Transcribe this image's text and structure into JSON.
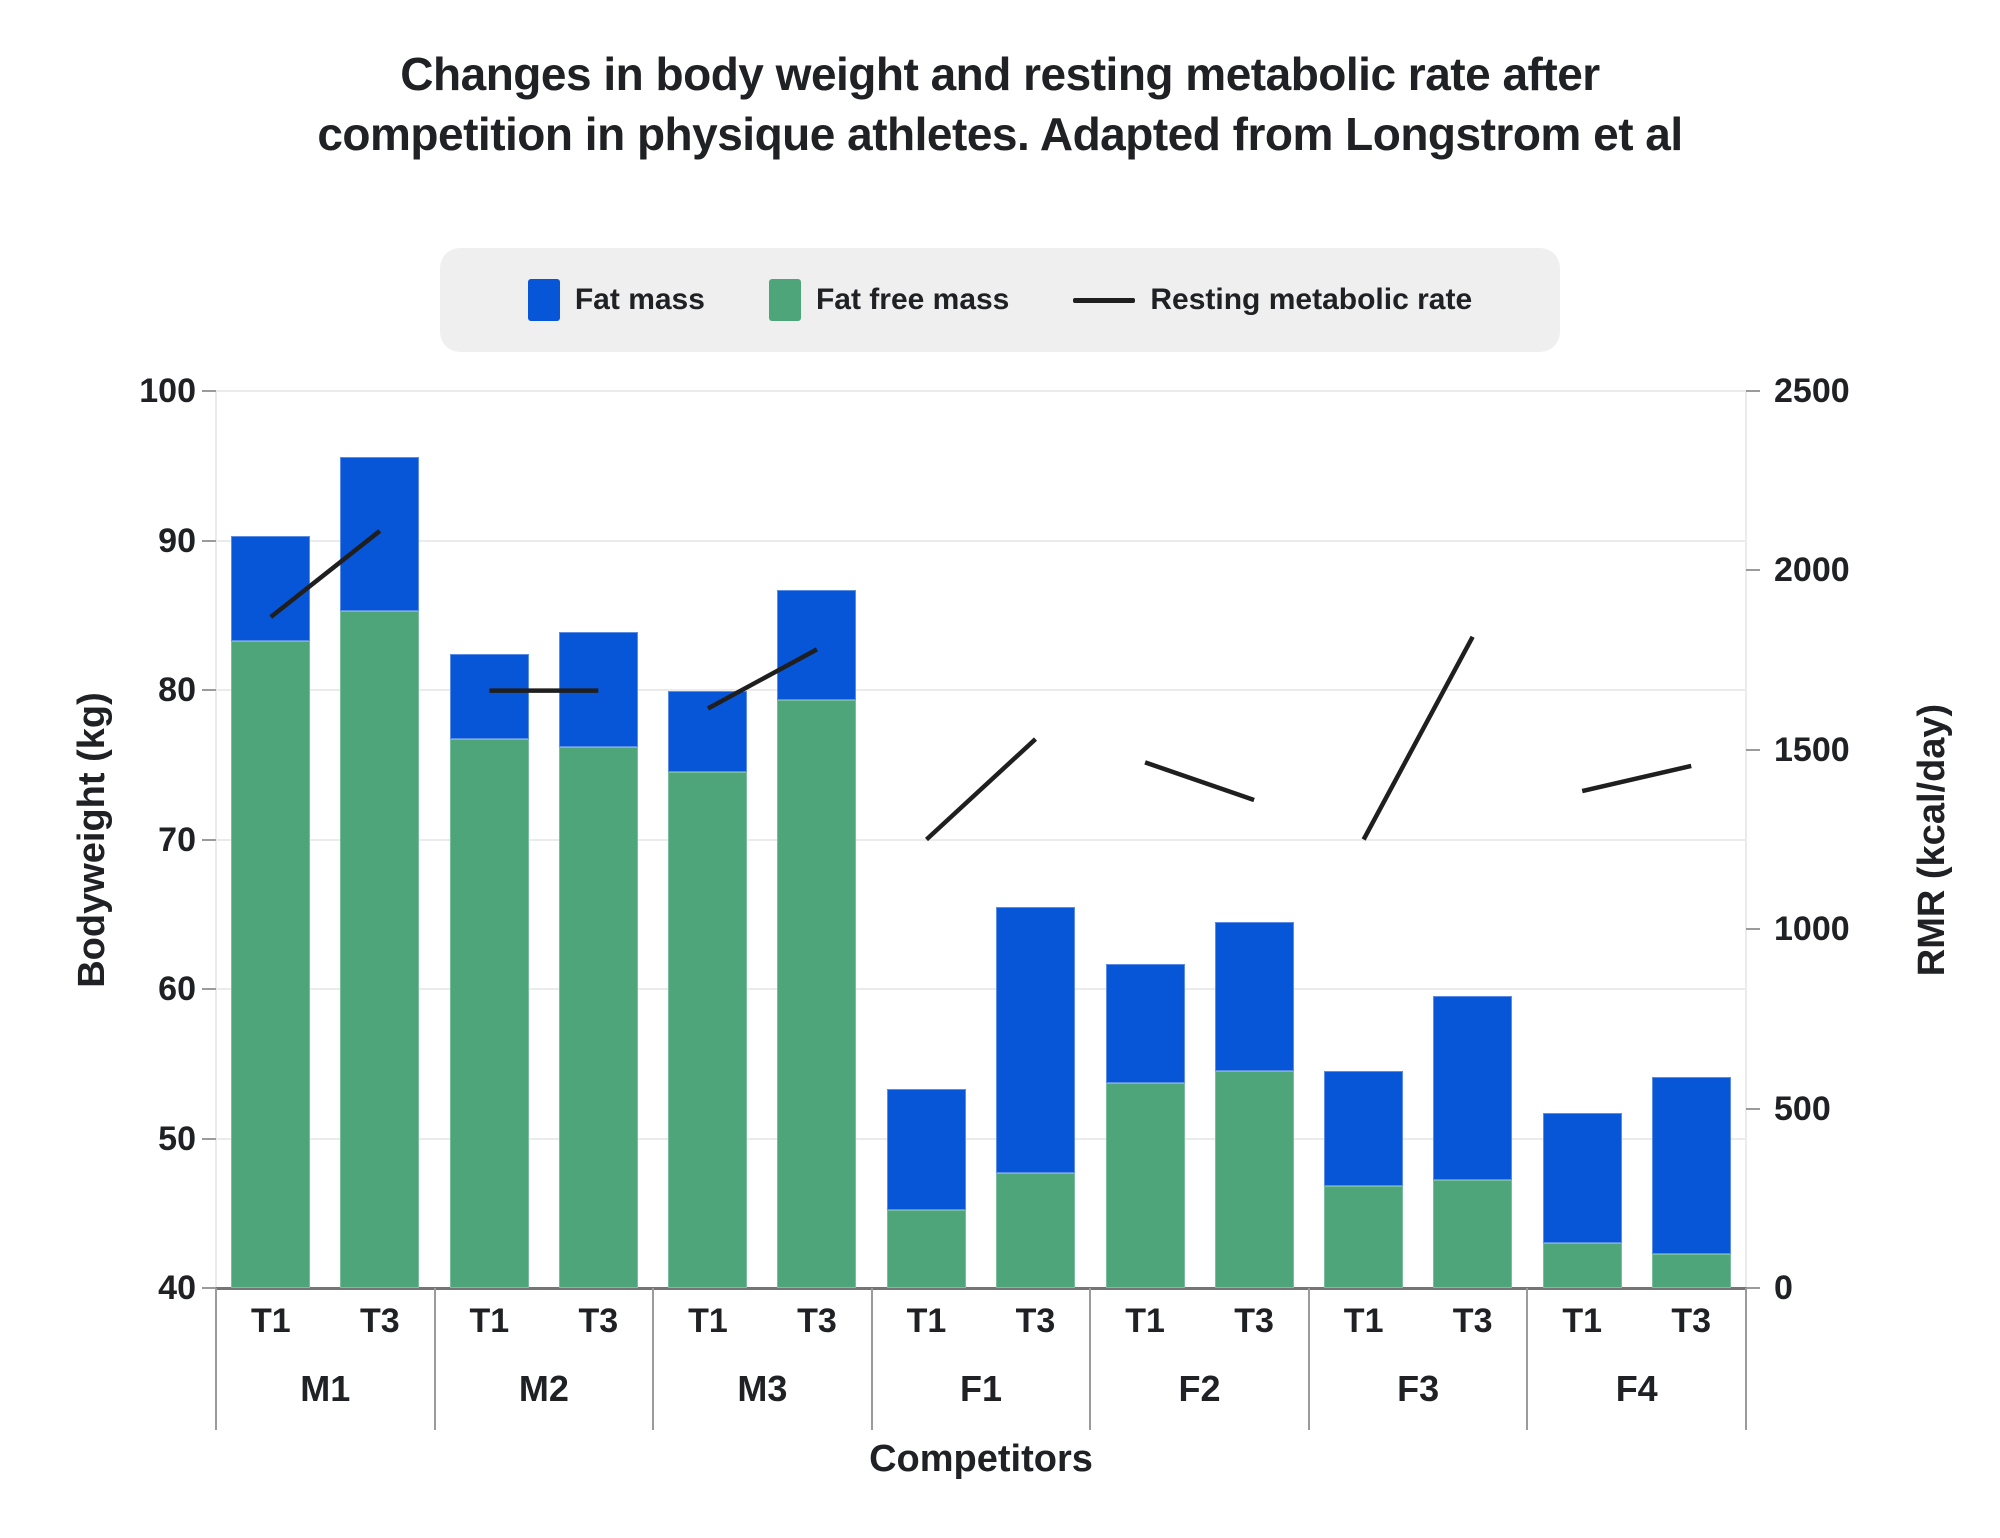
{
  "title": {
    "line1": "Changes in body weight and resting metabolic rate after",
    "line2": "competition in physique athletes. Adapted from Longstrom et al"
  },
  "chart_data": {
    "type": "bar",
    "subtype": "stacked-bar-with-line-overlay",
    "title": "Changes in body weight and resting metabolic rate after competition in physique athletes. Adapted from Longstrom et al",
    "xlabel": "Competitors",
    "categories": [
      "M1",
      "M2",
      "M3",
      "F1",
      "F2",
      "F3",
      "F4"
    ],
    "timepoints": [
      "T1",
      "T3"
    ],
    "grid": true,
    "legend_position": "top-center",
    "legend": [
      {
        "label": "Fat mass",
        "type": "square",
        "color": "#0756d8"
      },
      {
        "label": "Fat free mass",
        "type": "square",
        "color": "#4ea57a"
      },
      {
        "label": "Resting metabolic rate",
        "type": "line",
        "color": "#1f1f1f"
      }
    ],
    "left_axis": {
      "label": "Bodyweight (kg)",
      "min": 40,
      "max": 100,
      "ticks": [
        100,
        90,
        80,
        70,
        60,
        50,
        40
      ]
    },
    "right_axis": {
      "label": "RMR (kcal/day)",
      "min": 0,
      "max": 2500,
      "ticks": [
        2500,
        2000,
        1500,
        1000,
        500,
        0
      ]
    },
    "competitors": [
      {
        "id": "M1",
        "bars": [
          {
            "time": "T1",
            "fat_free_mass": 83.3,
            "fat_mass": 7.0,
            "total": 90.3
          },
          {
            "time": "T3",
            "fat_free_mass": 85.3,
            "fat_mass": 10.3,
            "total": 95.6
          }
        ],
        "rmr": [
          1870,
          2110
        ]
      },
      {
        "id": "M2",
        "bars": [
          {
            "time": "T1",
            "fat_free_mass": 76.7,
            "fat_mass": 5.7,
            "total": 82.4
          },
          {
            "time": "T3",
            "fat_free_mass": 76.2,
            "fat_mass": 7.7,
            "total": 83.9
          }
        ],
        "rmr": [
          1665,
          1665
        ]
      },
      {
        "id": "M3",
        "bars": [
          {
            "time": "T1",
            "fat_free_mass": 74.5,
            "fat_mass": 5.4,
            "total": 79.9
          },
          {
            "time": "T3",
            "fat_free_mass": 79.3,
            "fat_mass": 7.4,
            "total": 86.7
          }
        ],
        "rmr": [
          1615,
          1780
        ]
      },
      {
        "id": "F1",
        "bars": [
          {
            "time": "T1",
            "fat_free_mass": 45.2,
            "fat_mass": 8.1,
            "total": 53.3
          },
          {
            "time": "T3",
            "fat_free_mass": 47.7,
            "fat_mass": 17.8,
            "total": 65.5
          }
        ],
        "rmr": [
          1250,
          1530
        ]
      },
      {
        "id": "F2",
        "bars": [
          {
            "time": "T1",
            "fat_free_mass": 53.7,
            "fat_mass": 8.0,
            "total": 61.7
          },
          {
            "time": "T3",
            "fat_free_mass": 54.5,
            "fat_mass": 10.0,
            "total": 64.5
          }
        ],
        "rmr": [
          1465,
          1360
        ]
      },
      {
        "id": "F3",
        "bars": [
          {
            "time": "T1",
            "fat_free_mass": 46.8,
            "fat_mass": 7.7,
            "total": 54.5
          },
          {
            "time": "T3",
            "fat_free_mass": 47.2,
            "fat_mass": 12.3,
            "total": 59.5
          }
        ],
        "rmr": [
          1250,
          1815
        ]
      },
      {
        "id": "F4",
        "bars": [
          {
            "time": "T1",
            "fat_free_mass": 43.0,
            "fat_mass": 8.7,
            "total": 51.7
          },
          {
            "time": "T3",
            "fat_free_mass": 42.3,
            "fat_mass": 11.8,
            "total": 54.1
          }
        ],
        "rmr": [
          1385,
          1455
        ]
      }
    ]
  },
  "colors": {
    "fat_mass": "#0756d8",
    "fat_mass_border": "#5b8de4",
    "fat_free_mass": "#4ea57a",
    "fat_free_mass_border": "#7abd9e",
    "rmr_line": "#1f1f1f",
    "grid": "#ebebeb",
    "axis_line": "#757575",
    "divider": "#9b9b9b",
    "text": "#202124",
    "legend_bg": "#efefef",
    "background": "#ffffff"
  }
}
